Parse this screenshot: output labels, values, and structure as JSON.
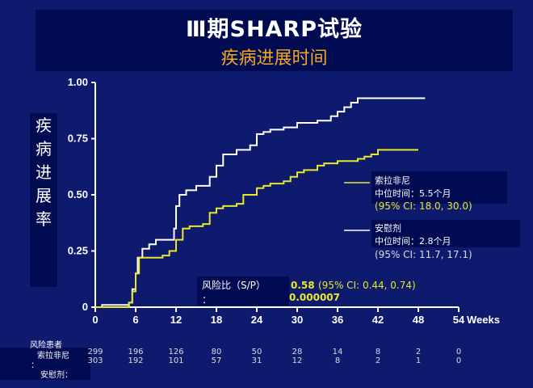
{
  "title": {
    "line1": "Ⅲ期SHARP试验",
    "line2": "疾病进展时间"
  },
  "ylabel_chars": [
    "疾",
    "病",
    "进",
    "展",
    "率"
  ],
  "colors": {
    "sorafenib": "#e8e82a",
    "placebo": "#ffffff",
    "title_accent": "#f5a623",
    "background": "#0d1a6e"
  },
  "chart_data": {
    "type": "line",
    "ylabel": "疾病进展率",
    "xunit": "Weeks",
    "xlim": [
      0,
      54
    ],
    "ylim": [
      0,
      1.0
    ],
    "x_ticks": [
      0,
      6,
      12,
      18,
      24,
      30,
      36,
      42,
      48,
      54
    ],
    "y_ticks": [
      "0",
      "0.25",
      "0.50",
      "0.75",
      "1.00"
    ],
    "y_tick_values": [
      0,
      0.25,
      0.5,
      0.75,
      1.0
    ],
    "series": [
      {
        "name": "安慰剂",
        "color": "#ffffff",
        "points": [
          [
            0,
            0
          ],
          [
            1,
            0.01
          ],
          [
            3,
            0.01
          ],
          [
            5,
            0.02
          ],
          [
            5.5,
            0.08
          ],
          [
            6,
            0.15
          ],
          [
            6.3,
            0.22
          ],
          [
            7,
            0.26
          ],
          [
            8,
            0.28
          ],
          [
            9,
            0.3
          ],
          [
            11,
            0.3
          ],
          [
            11.7,
            0.35
          ],
          [
            12,
            0.45
          ],
          [
            12.5,
            0.5
          ],
          [
            13.5,
            0.52
          ],
          [
            15,
            0.54
          ],
          [
            17,
            0.58
          ],
          [
            18,
            0.63
          ],
          [
            19,
            0.68
          ],
          [
            21,
            0.7
          ],
          [
            23,
            0.72
          ],
          [
            24,
            0.77
          ],
          [
            25,
            0.78
          ],
          [
            26,
            0.79
          ],
          [
            28,
            0.8
          ],
          [
            30,
            0.82
          ],
          [
            33,
            0.83
          ],
          [
            35,
            0.85
          ],
          [
            36,
            0.87
          ],
          [
            37,
            0.89
          ],
          [
            38,
            0.91
          ],
          [
            39,
            0.93
          ],
          [
            49,
            0.93
          ]
        ]
      },
      {
        "name": "索拉非尼",
        "color": "#e8e82a",
        "points": [
          [
            0,
            0
          ],
          [
            3,
            0
          ],
          [
            5,
            0.02
          ],
          [
            5.5,
            0.07
          ],
          [
            6,
            0.15
          ],
          [
            6.5,
            0.22
          ],
          [
            10,
            0.23
          ],
          [
            11,
            0.25
          ],
          [
            12,
            0.3
          ],
          [
            13,
            0.35
          ],
          [
            14,
            0.36
          ],
          [
            16,
            0.37
          ],
          [
            17,
            0.42
          ],
          [
            18,
            0.44
          ],
          [
            19,
            0.45
          ],
          [
            21,
            0.46
          ],
          [
            22,
            0.5
          ],
          [
            24,
            0.53
          ],
          [
            25,
            0.54
          ],
          [
            26,
            0.55
          ],
          [
            28,
            0.56
          ],
          [
            29,
            0.58
          ],
          [
            30,
            0.6
          ],
          [
            31,
            0.61
          ],
          [
            33,
            0.63
          ],
          [
            34,
            0.64
          ],
          [
            36,
            0.65
          ],
          [
            39,
            0.66
          ],
          [
            40,
            0.67
          ],
          [
            41,
            0.68
          ],
          [
            42,
            0.7
          ],
          [
            48,
            0.7
          ]
        ]
      }
    ],
    "legend": [
      {
        "name": "索拉非尼",
        "median": "中位时间：5.5个月",
        "ci": "(95% CI: 18.0, 30.0)"
      },
      {
        "name": "安慰剂",
        "median": "中位时间：2.8个月",
        "ci": "(95% CI: 11.7, 17.1)"
      }
    ],
    "hazard": {
      "label": "风险比（S/P）",
      "colon": "：",
      "value": "0.58",
      "ci": "(95% CI: 0.44, 0.74)",
      "p_value": "0.000007"
    },
    "risk_table": {
      "title": "风险患者",
      "rows": [
        {
          "label": "索拉非尼",
          "values": [
            "299",
            "196",
            "126",
            "80",
            "50",
            "28",
            "14",
            "8",
            "2",
            "0"
          ]
        },
        {
          "label": "安慰剂：",
          "values": [
            "303",
            "192",
            "101",
            "57",
            "31",
            "12",
            "8",
            "2",
            "1",
            "0"
          ]
        }
      ],
      "colon": "："
    }
  }
}
